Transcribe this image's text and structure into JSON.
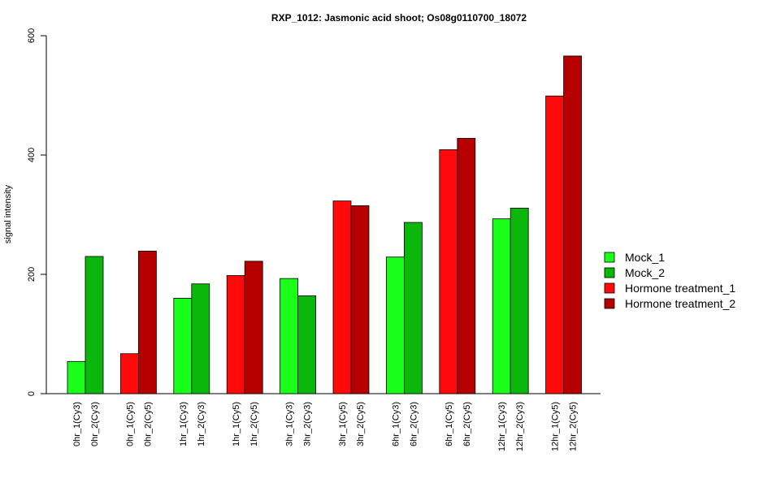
{
  "chart_data": {
    "type": "bar",
    "title": "RXP_1012: Jasmonic acid shoot; Os08g0110700_18072",
    "xlabel": "",
    "ylabel": "signal intensity",
    "ylim": [
      0,
      600
    ],
    "yticks": [
      0,
      200,
      400,
      600
    ],
    "legend_position": "right",
    "series": [
      {
        "name": "Mock_1",
        "color": "#19FF19"
      },
      {
        "name": "Mock_2",
        "color": "#0BB70B"
      },
      {
        "name": "Hormone treatment_1",
        "color": "#FF0A0A"
      },
      {
        "name": "Hormone treatment_2",
        "color": "#B60000"
      }
    ],
    "bars": [
      {
        "label": "0hr_1(Cy3)",
        "value": 54,
        "series": 0
      },
      {
        "label": "0hr_2(Cy3)",
        "value": 230,
        "series": 1
      },
      {
        "label": "0hr_1(Cy5)",
        "value": 67,
        "series": 2
      },
      {
        "label": "0hr_2(Cy5)",
        "value": 239,
        "series": 3
      },
      {
        "label": "1hr_1(Cy3)",
        "value": 160,
        "series": 0
      },
      {
        "label": "1hr_2(Cy3)",
        "value": 184,
        "series": 1
      },
      {
        "label": "1hr_1(Cy5)",
        "value": 198,
        "series": 2
      },
      {
        "label": "1hr_2(Cy5)",
        "value": 222,
        "series": 3
      },
      {
        "label": "3hr_1(Cy3)",
        "value": 193,
        "series": 0
      },
      {
        "label": "3hr_2(Cy3)",
        "value": 164,
        "series": 1
      },
      {
        "label": "3hr_1(Cy5)",
        "value": 323,
        "series": 2
      },
      {
        "label": "3hr_2(Cy5)",
        "value": 315,
        "series": 3
      },
      {
        "label": "6hr_1(Cy3)",
        "value": 229,
        "series": 0
      },
      {
        "label": "6hr_2(Cy3)",
        "value": 287,
        "series": 1
      },
      {
        "label": "6hr_1(Cy5)",
        "value": 409,
        "series": 2
      },
      {
        "label": "6hr_2(Cy5)",
        "value": 428,
        "series": 3
      },
      {
        "label": "12hr_1(Cy3)",
        "value": 293,
        "series": 0
      },
      {
        "label": "12hr_2(Cy3)",
        "value": 311,
        "series": 1
      },
      {
        "label": "12hr_1(Cy5)",
        "value": 499,
        "series": 2
      },
      {
        "label": "12hr_2(Cy5)",
        "value": 566,
        "series": 3
      }
    ]
  }
}
